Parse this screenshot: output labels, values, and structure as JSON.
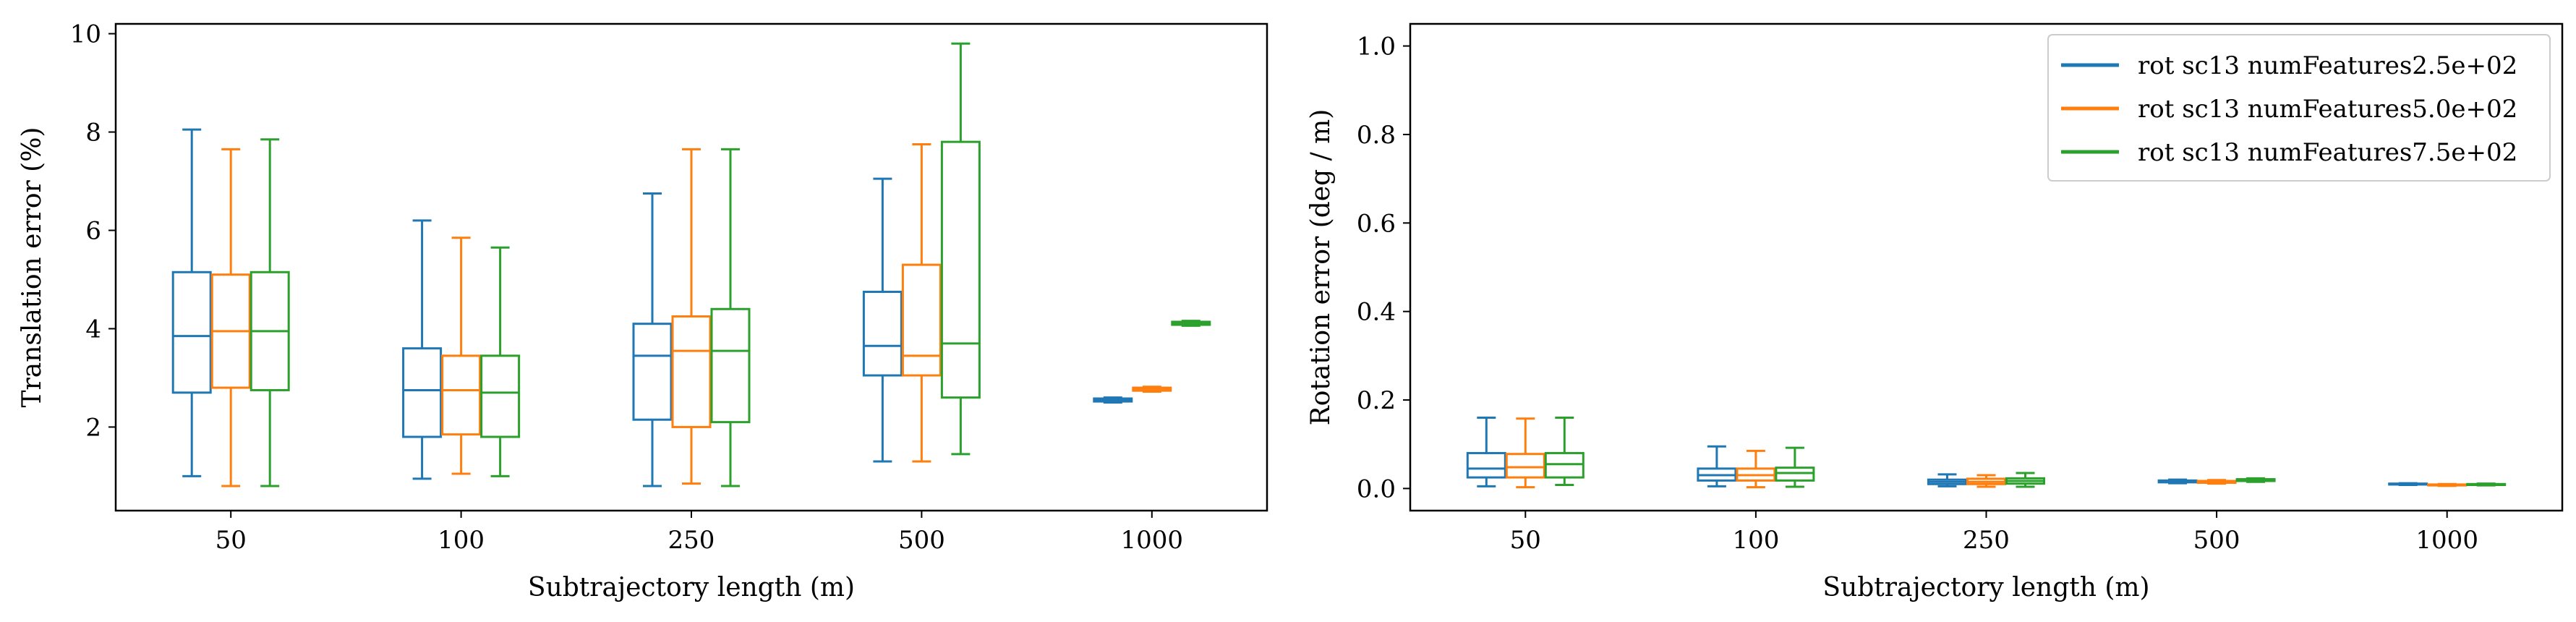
{
  "chart_data": [
    {
      "type": "box",
      "categories": [
        "50",
        "100",
        "250",
        "500",
        "1000"
      ],
      "xlabel": "Subtrajectory length (m)",
      "ylabel": "Translation error (%)",
      "ylim": [
        0.3,
        10.2
      ],
      "yticks": [
        2,
        4,
        6,
        8,
        10
      ],
      "grid": false,
      "series": [
        {
          "color": "#1f77b4",
          "boxes": [
            {
              "whislo": 1.0,
              "q1": 2.7,
              "med": 3.85,
              "q3": 5.15,
              "whishi": 8.05
            },
            {
              "whislo": 0.95,
              "q1": 1.8,
              "med": 2.75,
              "q3": 3.6,
              "whishi": 6.2
            },
            {
              "whislo": 0.8,
              "q1": 2.15,
              "med": 3.45,
              "q3": 4.1,
              "whishi": 6.75
            },
            {
              "whislo": 1.3,
              "q1": 3.05,
              "med": 3.65,
              "q3": 4.75,
              "whishi": 7.05
            },
            {
              "whislo": 2.5,
              "q1": 2.52,
              "med": 2.55,
              "q3": 2.58,
              "whishi": 2.6
            }
          ]
        },
        {
          "color": "#ff7f0e",
          "boxes": [
            {
              "whislo": 0.8,
              "q1": 2.8,
              "med": 3.95,
              "q3": 5.1,
              "whishi": 7.65
            },
            {
              "whislo": 1.05,
              "q1": 1.85,
              "med": 2.75,
              "q3": 3.45,
              "whishi": 5.85
            },
            {
              "whislo": 0.85,
              "q1": 2.0,
              "med": 3.55,
              "q3": 4.25,
              "whishi": 7.65
            },
            {
              "whislo": 1.3,
              "q1": 3.05,
              "med": 3.45,
              "q3": 5.3,
              "whishi": 7.75
            },
            {
              "whislo": 2.72,
              "q1": 2.74,
              "med": 2.78,
              "q3": 2.8,
              "whishi": 2.82
            }
          ]
        },
        {
          "color": "#2ca02c",
          "boxes": [
            {
              "whislo": 0.8,
              "q1": 2.75,
              "med": 3.95,
              "q3": 5.15,
              "whishi": 7.85
            },
            {
              "whislo": 1.0,
              "q1": 1.8,
              "med": 2.7,
              "q3": 3.45,
              "whishi": 5.65
            },
            {
              "whislo": 0.8,
              "q1": 2.1,
              "med": 3.55,
              "q3": 4.4,
              "whishi": 7.65
            },
            {
              "whislo": 1.45,
              "q1": 2.6,
              "med": 3.7,
              "q3": 7.8,
              "whishi": 9.8
            },
            {
              "whislo": 4.06,
              "q1": 4.08,
              "med": 4.12,
              "q3": 4.14,
              "whishi": 4.16
            }
          ]
        }
      ]
    },
    {
      "type": "box",
      "categories": [
        "50",
        "100",
        "250",
        "500",
        "1000"
      ],
      "xlabel": "Subtrajectory length (m)",
      "ylabel": "Rotation error (deg / m)",
      "ylim": [
        -0.05,
        1.05
      ],
      "yticks": [
        "0.0",
        "0.2",
        "0.4",
        "0.6",
        "0.8",
        "1.0"
      ],
      "grid": false,
      "legend": {
        "position": "top-right",
        "entries": [
          "rot sc13 numFeatures2.5e+02",
          "rot sc13 numFeatures5.0e+02",
          "rot sc13 numFeatures7.5e+02"
        ]
      },
      "series": [
        {
          "name": "rot sc13 numFeatures2.5e+02",
          "color": "#1f77b4",
          "boxes": [
            {
              "whislo": 0.005,
              "q1": 0.025,
              "med": 0.045,
              "q3": 0.08,
              "whishi": 0.16
            },
            {
              "whislo": 0.005,
              "q1": 0.018,
              "med": 0.03,
              "q3": 0.045,
              "whishi": 0.095
            },
            {
              "whislo": 0.005,
              "q1": 0.01,
              "med": 0.015,
              "q3": 0.02,
              "whishi": 0.032
            },
            {
              "whislo": 0.012,
              "q1": 0.014,
              "med": 0.016,
              "q3": 0.018,
              "whishi": 0.02
            },
            {
              "whislo": 0.008,
              "q1": 0.009,
              "med": 0.01,
              "q3": 0.011,
              "whishi": 0.012
            }
          ]
        },
        {
          "name": "rot sc13 numFeatures5.0e+02",
          "color": "#ff7f0e",
          "boxes": [
            {
              "whislo": 0.003,
              "q1": 0.025,
              "med": 0.048,
              "q3": 0.078,
              "whishi": 0.158
            },
            {
              "whislo": 0.003,
              "q1": 0.018,
              "med": 0.03,
              "q3": 0.045,
              "whishi": 0.085
            },
            {
              "whislo": 0.004,
              "q1": 0.01,
              "med": 0.015,
              "q3": 0.022,
              "whishi": 0.03
            },
            {
              "whislo": 0.011,
              "q1": 0.013,
              "med": 0.015,
              "q3": 0.017,
              "whishi": 0.019
            },
            {
              "whislo": 0.006,
              "q1": 0.007,
              "med": 0.008,
              "q3": 0.009,
              "whishi": 0.01
            }
          ]
        },
        {
          "name": "rot sc13 numFeatures7.5e+02",
          "color": "#2ca02c",
          "boxes": [
            {
              "whislo": 0.008,
              "q1": 0.025,
              "med": 0.055,
              "q3": 0.08,
              "whishi": 0.16
            },
            {
              "whislo": 0.004,
              "q1": 0.018,
              "med": 0.035,
              "q3": 0.047,
              "whishi": 0.092
            },
            {
              "whislo": 0.004,
              "q1": 0.011,
              "med": 0.017,
              "q3": 0.023,
              "whishi": 0.035
            },
            {
              "whislo": 0.015,
              "q1": 0.017,
              "med": 0.019,
              "q3": 0.021,
              "whishi": 0.023
            },
            {
              "whislo": 0.007,
              "q1": 0.008,
              "med": 0.009,
              "q3": 0.01,
              "whishi": 0.011
            }
          ]
        }
      ]
    }
  ]
}
